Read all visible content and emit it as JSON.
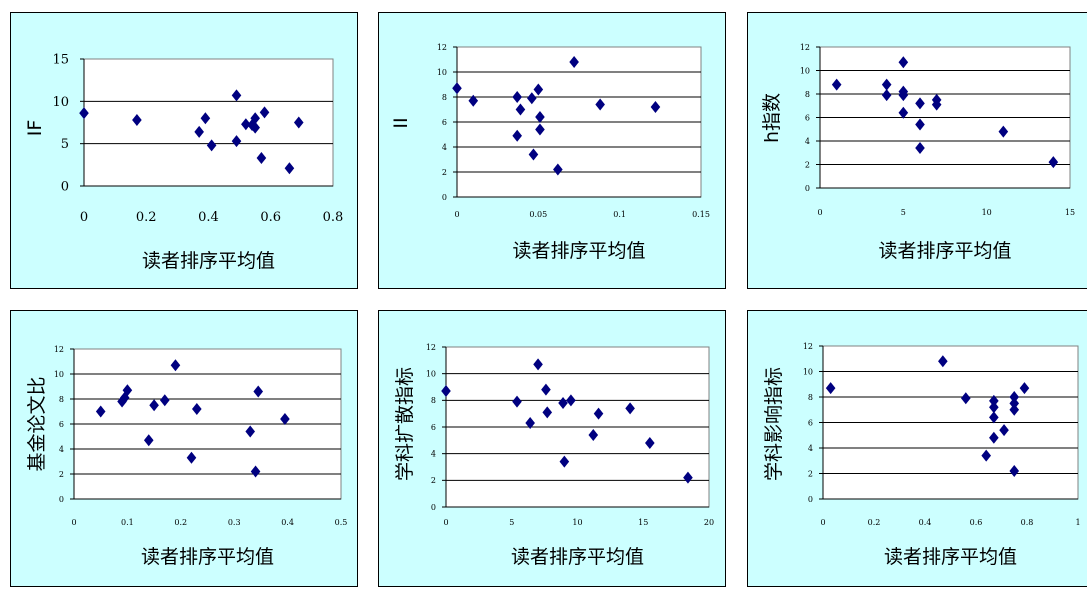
{
  "charts": [
    {
      "chart_data": {
        "type": "scatter",
        "title": "",
        "xlabel": "读者排序平均值",
        "ylabel": "IF",
        "xlim": [
          0,
          0.8
        ],
        "ylim": [
          0,
          15
        ],
        "xticks": [
          0,
          0.2,
          0.4,
          0.6,
          0.8
        ],
        "yticks": [
          0,
          5,
          10,
          15
        ],
        "tick_labels_x": [
          "0",
          "0.2",
          "0.4",
          "0.6",
          "0.8"
        ],
        "tick_labels_y": [
          "0",
          "5",
          "10",
          "15"
        ],
        "grid": "horizontal",
        "legend": "none",
        "marker_color": "#000080",
        "points": [
          [
            0,
            8.6
          ],
          [
            0.17,
            7.8
          ],
          [
            0.37,
            6.4
          ],
          [
            0.39,
            8.0
          ],
          [
            0.41,
            4.8
          ],
          [
            0.49,
            5.3
          ],
          [
            0.49,
            10.7
          ],
          [
            0.52,
            7.3
          ],
          [
            0.54,
            7.2
          ],
          [
            0.55,
            8.0
          ],
          [
            0.55,
            6.9
          ],
          [
            0.57,
            3.3
          ],
          [
            0.58,
            8.7
          ],
          [
            0.66,
            2.1
          ],
          [
            0.69,
            7.5
          ]
        ]
      }
    },
    {
      "chart_data": {
        "type": "scatter",
        "title": "",
        "xlabel": "读者排序平均值",
        "ylabel": "II",
        "xlim": [
          0,
          0.15
        ],
        "ylim": [
          0,
          12
        ],
        "xticks": [
          0,
          0.05,
          0.1,
          0.15
        ],
        "yticks": [
          0,
          2,
          4,
          6,
          8,
          10,
          12
        ],
        "tick_labels_x": [
          "0",
          "0.05",
          "0.1",
          "0.15"
        ],
        "tick_labels_y": [
          "0",
          "2",
          "4",
          "6",
          "8",
          "10",
          "12"
        ],
        "grid": "horizontal",
        "legend": "none",
        "marker_color": "#000080",
        "points": [
          [
            0,
            8.7
          ],
          [
            0.01,
            7.7
          ],
          [
            0.037,
            8.0
          ],
          [
            0.037,
            4.9
          ],
          [
            0.039,
            7.0
          ],
          [
            0.046,
            7.9
          ],
          [
            0.047,
            3.4
          ],
          [
            0.05,
            8.6
          ],
          [
            0.051,
            6.4
          ],
          [
            0.051,
            5.4
          ],
          [
            0.062,
            2.2
          ],
          [
            0.072,
            10.8
          ],
          [
            0.088,
            7.4
          ],
          [
            0.122,
            7.2
          ]
        ]
      }
    },
    {
      "chart_data": {
        "type": "scatter",
        "title": "",
        "xlabel": "读者排序平均值",
        "ylabel": "h指数",
        "xlim": [
          0,
          15
        ],
        "ylim": [
          0,
          12
        ],
        "xticks": [
          0,
          5,
          10,
          15
        ],
        "yticks": [
          0,
          2,
          4,
          6,
          8,
          10,
          12
        ],
        "tick_labels_x": [
          "0",
          "5",
          "10",
          "15"
        ],
        "tick_labels_y": [
          "0",
          "2",
          "4",
          "6",
          "8",
          "10",
          "12"
        ],
        "grid": "horizontal",
        "legend": "none",
        "marker_color": "#000080",
        "points": [
          [
            1,
            8.8
          ],
          [
            4,
            8.8
          ],
          [
            4,
            7.9
          ],
          [
            5,
            10.7
          ],
          [
            5,
            8.2
          ],
          [
            5,
            7.9
          ],
          [
            5,
            6.4
          ],
          [
            6,
            7.2
          ],
          [
            6,
            5.4
          ],
          [
            6,
            3.4
          ],
          [
            7,
            7.5
          ],
          [
            7,
            7.1
          ],
          [
            11,
            4.8
          ],
          [
            14,
            2.2
          ]
        ]
      }
    },
    {
      "chart_data": {
        "type": "scatter",
        "title": "",
        "xlabel": "读者排序平均值",
        "ylabel": "基金论文比",
        "xlim": [
          0,
          0.5
        ],
        "ylim": [
          0,
          12
        ],
        "xticks": [
          0,
          0.1,
          0.2,
          0.3,
          0.4,
          0.5
        ],
        "yticks": [
          0,
          2,
          4,
          6,
          8,
          10,
          12
        ],
        "tick_labels_x": [
          "0",
          "0.1",
          "0.2",
          "0.3",
          "0.4",
          "0.5"
        ],
        "tick_labels_y": [
          "0",
          "2",
          "4",
          "6",
          "8",
          "10",
          "12"
        ],
        "grid": "horizontal",
        "legend": "none",
        "marker_color": "#000080",
        "points": [
          [
            0.05,
            7.0
          ],
          [
            0.09,
            7.8
          ],
          [
            0.095,
            8.1
          ],
          [
            0.1,
            8.7
          ],
          [
            0.14,
            4.7
          ],
          [
            0.15,
            7.5
          ],
          [
            0.17,
            7.9
          ],
          [
            0.19,
            10.7
          ],
          [
            0.22,
            3.3
          ],
          [
            0.23,
            7.2
          ],
          [
            0.33,
            5.4
          ],
          [
            0.34,
            2.2
          ],
          [
            0.345,
            8.6
          ],
          [
            0.395,
            6.4
          ]
        ]
      }
    },
    {
      "chart_data": {
        "type": "scatter",
        "title": "",
        "xlabel": "读者排序平均值",
        "ylabel": "学科扩散指标",
        "xlim": [
          0,
          20
        ],
        "ylim": [
          0,
          12
        ],
        "xticks": [
          0,
          5,
          10,
          15,
          20
        ],
        "yticks": [
          0,
          2,
          4,
          6,
          8,
          10,
          12
        ],
        "tick_labels_x": [
          "0",
          "5",
          "10",
          "15",
          "20"
        ],
        "tick_labels_y": [
          "0",
          "2",
          "4",
          "6",
          "8",
          "10",
          "12"
        ],
        "grid": "horizontal",
        "legend": "none",
        "marker_color": "#000080",
        "points": [
          [
            0,
            8.7
          ],
          [
            5.4,
            7.9
          ],
          [
            6.4,
            6.3
          ],
          [
            7.0,
            10.7
          ],
          [
            7.6,
            8.8
          ],
          [
            7.7,
            7.1
          ],
          [
            8.9,
            7.8
          ],
          [
            9.0,
            3.4
          ],
          [
            9.5,
            8.0
          ],
          [
            11.2,
            5.4
          ],
          [
            11.6,
            7.0
          ],
          [
            14.0,
            7.4
          ],
          [
            15.5,
            4.8
          ],
          [
            18.4,
            2.2
          ]
        ]
      }
    },
    {
      "chart_data": {
        "type": "scatter",
        "title": "",
        "xlabel": "读者排序平均值",
        "ylabel": "学科影响指标",
        "xlim": [
          0,
          1
        ],
        "ylim": [
          0,
          12
        ],
        "xticks": [
          0,
          0.2,
          0.4,
          0.6,
          0.8,
          1
        ],
        "yticks": [
          0,
          2,
          4,
          6,
          8,
          10,
          12
        ],
        "tick_labels_x": [
          "0",
          "0.2",
          "0.4",
          "0.6",
          "0.8",
          "1"
        ],
        "tick_labels_y": [
          "0",
          "2",
          "4",
          "6",
          "8",
          "10",
          "12"
        ],
        "grid": "horizontal",
        "legend": "none",
        "marker_color": "#000080",
        "points": [
          [
            0.03,
            8.7
          ],
          [
            0.47,
            10.8
          ],
          [
            0.56,
            7.9
          ],
          [
            0.64,
            3.4
          ],
          [
            0.67,
            7.7
          ],
          [
            0.67,
            7.2
          ],
          [
            0.67,
            6.4
          ],
          [
            0.67,
            4.8
          ],
          [
            0.71,
            5.4
          ],
          [
            0.75,
            8.0
          ],
          [
            0.75,
            7.5
          ],
          [
            0.75,
            7.0
          ],
          [
            0.75,
            2.2
          ],
          [
            0.79,
            8.7
          ]
        ]
      }
    }
  ]
}
